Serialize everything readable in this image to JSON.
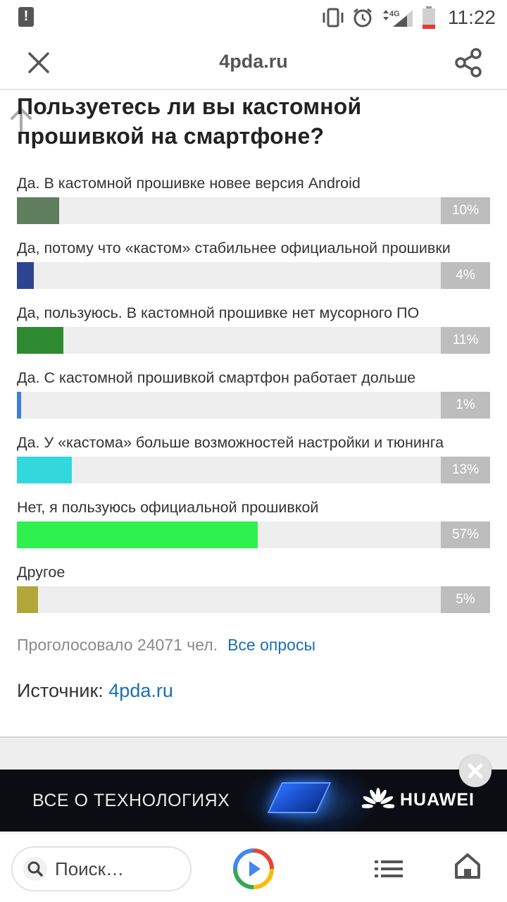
{
  "status_bar": {
    "time": "11:22",
    "network": "4G",
    "icons": [
      "alert-icon",
      "vibrate-icon",
      "alarm-icon",
      "signal-icon",
      "battery-icon"
    ]
  },
  "top_bar": {
    "title": "4pda.ru",
    "close_icon": "close-icon",
    "share_icon": "share-icon"
  },
  "poll": {
    "question": "Пользуетесь ли вы кастомной прошивкой на смартфоне?",
    "options": [
      {
        "label": "Да. В кастомной прошивке новее версия Android",
        "percent_text": "10%",
        "percent": 10,
        "color": "#5e7e5e"
      },
      {
        "label": "Да, потому что «кастом» стабильнее официальной прошивки",
        "percent_text": "4%",
        "percent": 4,
        "color": "#2d4591"
      },
      {
        "label": "Да, пользуюсь. В кастомной прошивке нет мусорного ПО",
        "percent_text": "11%",
        "percent": 11,
        "color": "#2e8a30"
      },
      {
        "label": "Да. С кастомной прошивкой смартфон работает дольше",
        "percent_text": "1%",
        "percent": 1,
        "color": "#3d7fe0"
      },
      {
        "label": "Да. У «кастома» больше возможностей настройки и тюнинга",
        "percent_text": "13%",
        "percent": 13,
        "color": "#33d8dc"
      },
      {
        "label": "Нет, я пользуюсь официальной прошивкой",
        "percent_text": "57%",
        "percent": 57,
        "color": "#2ef04f"
      },
      {
        "label": "Другое",
        "percent_text": "5%",
        "percent": 5,
        "color": "#b3a63a"
      }
    ],
    "votes_text": "Проголосовало 24071 чел.",
    "all_polls_link": "Все опросы"
  },
  "source": {
    "label": "Источник:",
    "link": "4pda.ru"
  },
  "ad": {
    "text": "ВСЕ О ТЕХНОЛОГИЯХ",
    "brand": "HUAWEI"
  },
  "bottom_bar": {
    "search_placeholder": "Поиск…"
  }
}
